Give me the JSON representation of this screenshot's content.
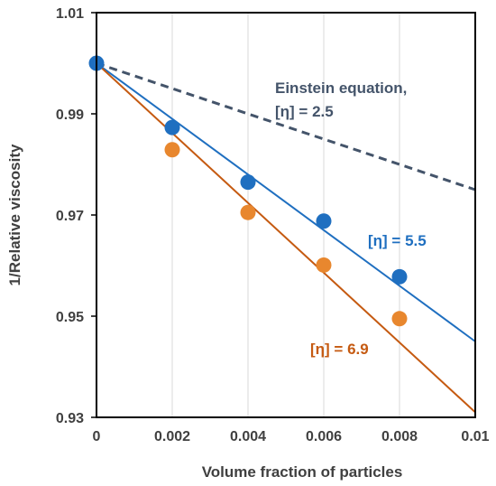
{
  "chart_data": {
    "type": "scatter",
    "xlabel": "Volume fraction of particles",
    "ylabel": "1/Relative viscosity",
    "xlim": [
      0,
      0.01
    ],
    "ylim": [
      0.93,
      1.01
    ],
    "x_ticks": [
      "0",
      "0.002",
      "0.004",
      "0.006",
      "0.008",
      "0.01"
    ],
    "y_ticks": [
      "0.93",
      "0.95",
      "0.97",
      "0.99",
      "1.01"
    ],
    "grid_x": true,
    "grid_y": false,
    "series": [
      {
        "kind": "points",
        "color": "#1f6fc0",
        "x": [
          0,
          0.002,
          0.004,
          0.006,
          0.008
        ],
        "y": [
          1.0,
          0.9873,
          0.9765,
          0.9688,
          0.9578
        ]
      },
      {
        "kind": "points",
        "color": "#e8872e",
        "x": [
          0.002,
          0.004,
          0.006,
          0.008
        ],
        "y": [
          0.9829,
          0.9705,
          0.9601,
          0.9495
        ]
      },
      {
        "kind": "line",
        "color": "#1f6fc0",
        "style": "solid",
        "x": [
          0,
          0.01
        ],
        "y": [
          1.0,
          0.945
        ]
      },
      {
        "kind": "line",
        "color": "#c55a11",
        "style": "solid",
        "x": [
          0,
          0.01
        ],
        "y": [
          1.0,
          0.931
        ]
      },
      {
        "kind": "line",
        "color": "#44546a",
        "style": "dashed",
        "x": [
          0,
          0.01
        ],
        "y": [
          1.0,
          0.975
        ]
      }
    ],
    "annotations": [
      {
        "text_lines": [
          "Einstein equation,",
          "[η] = 2.5"
        ],
        "color": "#44546a"
      },
      {
        "text_lines": [
          "[η] = 5.5"
        ],
        "color": "#1f6fc0"
      },
      {
        "text_lines": [
          "[η] = 6.9"
        ],
        "color": "#c55a11"
      }
    ]
  }
}
